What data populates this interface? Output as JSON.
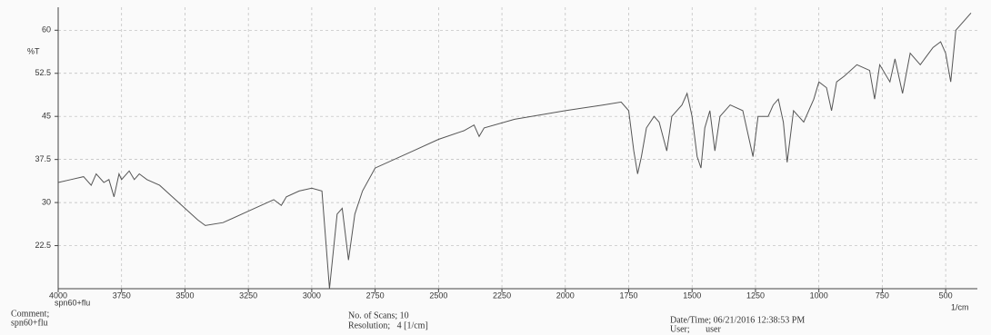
{
  "chart_data": {
    "type": "line",
    "x_label": "1/cm",
    "y_label": "%T",
    "sample": "spn60+flu",
    "x": [
      4000,
      3950,
      3900,
      3870,
      3850,
      3820,
      3800,
      3780,
      3760,
      3750,
      3720,
      3700,
      3680,
      3650,
      3600,
      3550,
      3500,
      3450,
      3420,
      3350,
      3250,
      3150,
      3120,
      3100,
      3050,
      3000,
      2960,
      2930,
      2900,
      2880,
      2855,
      2830,
      2800,
      2750,
      2600,
      2500,
      2400,
      2360,
      2340,
      2320,
      2200,
      2000,
      1850,
      1780,
      1750,
      1730,
      1715,
      1700,
      1680,
      1650,
      1630,
      1600,
      1580,
      1540,
      1520,
      1500,
      1480,
      1465,
      1450,
      1430,
      1410,
      1390,
      1350,
      1300,
      1260,
      1240,
      1200,
      1180,
      1160,
      1140,
      1125,
      1100,
      1060,
      1020,
      1000,
      970,
      950,
      930,
      900,
      850,
      800,
      780,
      760,
      720,
      700,
      670,
      640,
      600,
      550,
      520,
      500,
      480,
      460,
      420,
      400
    ],
    "values": [
      33.5,
      34,
      34.5,
      33,
      35,
      33.5,
      34,
      31,
      35,
      34,
      35.5,
      34,
      35,
      34,
      33,
      31,
      29,
      27,
      26,
      26.5,
      28.5,
      30.5,
      29.5,
      31,
      32,
      32.5,
      32,
      15,
      28,
      29,
      20,
      28,
      32,
      36,
      39,
      41,
      42.5,
      43.5,
      41.5,
      43,
      44.5,
      46,
      47,
      47.5,
      46,
      39,
      35,
      38,
      43,
      45,
      44,
      39,
      45,
      47,
      49,
      45,
      38,
      36,
      43,
      46,
      39,
      45,
      47,
      46,
      38,
      45,
      45,
      47,
      48,
      44,
      37,
      46,
      44,
      48,
      51,
      50,
      46,
      51,
      52,
      54,
      53,
      48,
      54,
      51,
      55,
      49,
      56,
      54,
      57,
      58,
      56,
      51,
      60,
      62,
      63
    ],
    "color": "#555555",
    "xlim": [
      4000,
      375
    ],
    "xticks": [
      4000,
      3750,
      3500,
      3250,
      3000,
      2750,
      2500,
      2250,
      2000,
      1750,
      1500,
      1250,
      1000,
      750,
      500
    ],
    "ylim": [
      15,
      64
    ],
    "yticks": [
      22.5,
      30,
      37.5,
      45,
      52.5,
      60
    ],
    "grid": true
  },
  "footer": {
    "comment_label": "Comment;",
    "comment": "spn60+flu",
    "scans": "No. of Scans; 10",
    "resolution": "Resolution;   4 [1/cm]",
    "datetime": "Date/Time; 06/21/2016 12:38:53 PM",
    "user": "User;       user"
  }
}
